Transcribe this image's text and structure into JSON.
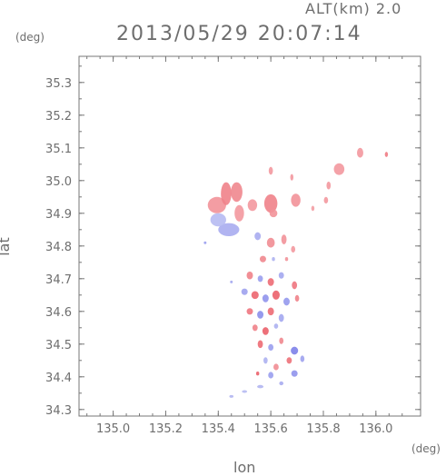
{
  "header": {
    "altitude": "ALT(km)  2.0",
    "timestamp": "2013/05/29  20:07:14"
  },
  "chart_data": {
    "type": "heatmap",
    "xlabel": "lon",
    "ylabel": "lat",
    "x_unit": "(deg)",
    "y_unit": "(deg)",
    "xlim": [
      134.87,
      136.17
    ],
    "ylim": [
      34.28,
      35.38
    ],
    "x_ticks": [
      135.0,
      135.2,
      135.4,
      135.6,
      135.8,
      136.0
    ],
    "x_tick_labels": [
      "135.0",
      "135.2",
      "135.4",
      "135.6",
      "135.8",
      "136.0"
    ],
    "y_ticks": [
      34.3,
      34.4,
      34.5,
      34.6,
      34.7,
      34.8,
      34.9,
      35.0,
      35.1,
      35.2,
      35.3
    ],
    "y_tick_labels": [
      "34.3",
      "34.4",
      "34.5",
      "34.6",
      "34.7",
      "34.8",
      "34.9",
      "35.0",
      "35.1",
      "35.2",
      "35.3"
    ],
    "grid": false,
    "colors": {
      "positive": "#e84a55",
      "positive_light": "#f7b9bd",
      "negative": "#6a6ee6",
      "negative_light": "#c9cdf5",
      "axis": "#777777"
    },
    "cells": [
      {
        "lon": 135.395,
        "lat": 34.925,
        "rx": 0.035,
        "ry": 0.025,
        "v": 0.35
      },
      {
        "lon": 135.43,
        "lat": 34.96,
        "rx": 0.02,
        "ry": 0.035,
        "v": 0.5
      },
      {
        "lon": 135.47,
        "lat": 34.965,
        "rx": 0.022,
        "ry": 0.03,
        "v": 0.45
      },
      {
        "lon": 135.44,
        "lat": 34.85,
        "rx": 0.04,
        "ry": 0.02,
        "v": -0.35
      },
      {
        "lon": 135.4,
        "lat": 34.88,
        "rx": 0.03,
        "ry": 0.02,
        "v": -0.2
      },
      {
        "lon": 135.48,
        "lat": 34.9,
        "rx": 0.018,
        "ry": 0.025,
        "v": 0.3
      },
      {
        "lon": 135.53,
        "lat": 34.925,
        "rx": 0.018,
        "ry": 0.018,
        "v": 0.3
      },
      {
        "lon": 135.6,
        "lat": 34.93,
        "rx": 0.025,
        "ry": 0.028,
        "v": 0.5
      },
      {
        "lon": 135.61,
        "lat": 34.9,
        "rx": 0.015,
        "ry": 0.012,
        "v": 0.35
      },
      {
        "lon": 135.695,
        "lat": 34.94,
        "rx": 0.018,
        "ry": 0.02,
        "v": 0.35
      },
      {
        "lon": 135.6,
        "lat": 35.03,
        "rx": 0.008,
        "ry": 0.012,
        "v": 0.3
      },
      {
        "lon": 135.68,
        "lat": 35.01,
        "rx": 0.006,
        "ry": 0.01,
        "v": 0.3
      },
      {
        "lon": 135.86,
        "lat": 35.035,
        "rx": 0.02,
        "ry": 0.018,
        "v": 0.3
      },
      {
        "lon": 135.82,
        "lat": 34.985,
        "rx": 0.008,
        "ry": 0.012,
        "v": 0.3
      },
      {
        "lon": 135.94,
        "lat": 35.085,
        "rx": 0.012,
        "ry": 0.015,
        "v": 0.3
      },
      {
        "lon": 136.04,
        "lat": 35.08,
        "rx": 0.006,
        "ry": 0.008,
        "v": 0.55
      },
      {
        "lon": 135.81,
        "lat": 34.94,
        "rx": 0.008,
        "ry": 0.01,
        "v": 0.3
      },
      {
        "lon": 135.76,
        "lat": 34.915,
        "rx": 0.006,
        "ry": 0.008,
        "v": 0.25
      },
      {
        "lon": 135.55,
        "lat": 34.83,
        "rx": 0.012,
        "ry": 0.012,
        "v": -0.35
      },
      {
        "lon": 135.6,
        "lat": 34.81,
        "rx": 0.015,
        "ry": 0.015,
        "v": 0.4
      },
      {
        "lon": 135.65,
        "lat": 34.82,
        "rx": 0.01,
        "ry": 0.015,
        "v": 0.35
      },
      {
        "lon": 135.685,
        "lat": 34.79,
        "rx": 0.008,
        "ry": 0.01,
        "v": 0.3
      },
      {
        "lon": 135.57,
        "lat": 34.76,
        "rx": 0.012,
        "ry": 0.01,
        "v": 0.45
      },
      {
        "lon": 135.52,
        "lat": 34.71,
        "rx": 0.012,
        "ry": 0.012,
        "v": 0.5
      },
      {
        "lon": 135.56,
        "lat": 34.7,
        "rx": 0.01,
        "ry": 0.01,
        "v": -0.5
      },
      {
        "lon": 135.6,
        "lat": 34.69,
        "rx": 0.012,
        "ry": 0.012,
        "v": 0.7
      },
      {
        "lon": 135.64,
        "lat": 34.71,
        "rx": 0.01,
        "ry": 0.01,
        "v": -0.4
      },
      {
        "lon": 135.69,
        "lat": 34.68,
        "rx": 0.01,
        "ry": 0.012,
        "v": 0.6
      },
      {
        "lon": 135.5,
        "lat": 34.66,
        "rx": 0.012,
        "ry": 0.01,
        "v": -0.45
      },
      {
        "lon": 135.54,
        "lat": 34.65,
        "rx": 0.014,
        "ry": 0.012,
        "v": 0.75
      },
      {
        "lon": 135.58,
        "lat": 34.64,
        "rx": 0.012,
        "ry": 0.012,
        "v": -0.6
      },
      {
        "lon": 135.62,
        "lat": 34.65,
        "rx": 0.014,
        "ry": 0.014,
        "v": 0.8
      },
      {
        "lon": 135.66,
        "lat": 34.63,
        "rx": 0.012,
        "ry": 0.012,
        "v": -0.55
      },
      {
        "lon": 135.7,
        "lat": 34.64,
        "rx": 0.008,
        "ry": 0.01,
        "v": 0.5
      },
      {
        "lon": 135.52,
        "lat": 34.6,
        "rx": 0.012,
        "ry": 0.01,
        "v": 0.6
      },
      {
        "lon": 135.56,
        "lat": 34.59,
        "rx": 0.012,
        "ry": 0.012,
        "v": -0.65
      },
      {
        "lon": 135.6,
        "lat": 34.6,
        "rx": 0.012,
        "ry": 0.012,
        "v": 0.7
      },
      {
        "lon": 135.64,
        "lat": 34.58,
        "rx": 0.01,
        "ry": 0.012,
        "v": -0.4
      },
      {
        "lon": 135.54,
        "lat": 34.55,
        "rx": 0.01,
        "ry": 0.01,
        "v": 0.5
      },
      {
        "lon": 135.58,
        "lat": 34.54,
        "rx": 0.012,
        "ry": 0.012,
        "v": 0.8
      },
      {
        "lon": 135.62,
        "lat": 34.555,
        "rx": 0.008,
        "ry": 0.008,
        "v": -0.3
      },
      {
        "lon": 135.56,
        "lat": 34.5,
        "rx": 0.01,
        "ry": 0.012,
        "v": 0.7
      },
      {
        "lon": 135.6,
        "lat": 34.49,
        "rx": 0.01,
        "ry": 0.01,
        "v": -0.5
      },
      {
        "lon": 135.64,
        "lat": 34.51,
        "rx": 0.008,
        "ry": 0.01,
        "v": 0.45
      },
      {
        "lon": 135.69,
        "lat": 34.48,
        "rx": 0.014,
        "ry": 0.012,
        "v": -0.8
      },
      {
        "lon": 135.67,
        "lat": 34.45,
        "rx": 0.01,
        "ry": 0.01,
        "v": 0.65
      },
      {
        "lon": 135.72,
        "lat": 34.455,
        "rx": 0.008,
        "ry": 0.01,
        "v": -0.45
      },
      {
        "lon": 135.58,
        "lat": 34.45,
        "rx": 0.008,
        "ry": 0.01,
        "v": -0.3
      },
      {
        "lon": 135.62,
        "lat": 34.43,
        "rx": 0.01,
        "ry": 0.01,
        "v": 0.4
      },
      {
        "lon": 135.55,
        "lat": 34.41,
        "rx": 0.006,
        "ry": 0.006,
        "v": 0.8
      },
      {
        "lon": 135.6,
        "lat": 34.405,
        "rx": 0.01,
        "ry": 0.01,
        "v": -0.5
      },
      {
        "lon": 135.69,
        "lat": 34.41,
        "rx": 0.012,
        "ry": 0.01,
        "v": -0.6
      },
      {
        "lon": 135.64,
        "lat": 34.38,
        "rx": 0.008,
        "ry": 0.006,
        "v": -0.35
      },
      {
        "lon": 135.56,
        "lat": 34.37,
        "rx": 0.012,
        "ry": 0.005,
        "v": -0.25
      },
      {
        "lon": 135.5,
        "lat": 34.355,
        "rx": 0.01,
        "ry": 0.004,
        "v": -0.2
      },
      {
        "lon": 135.45,
        "lat": 34.34,
        "rx": 0.008,
        "ry": 0.004,
        "v": -0.25
      },
      {
        "lon": 135.45,
        "lat": 34.69,
        "rx": 0.004,
        "ry": 0.004,
        "v": -0.4
      },
      {
        "lon": 135.35,
        "lat": 34.81,
        "rx": 0.004,
        "ry": 0.003,
        "v": -0.5
      },
      {
        "lon": 135.61,
        "lat": 34.76,
        "rx": 0.006,
        "ry": 0.006,
        "v": -0.3
      },
      {
        "lon": 135.66,
        "lat": 34.76,
        "rx": 0.006,
        "ry": 0.006,
        "v": 0.35
      }
    ]
  }
}
